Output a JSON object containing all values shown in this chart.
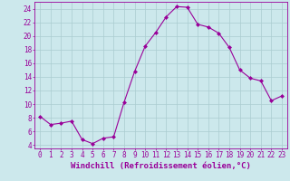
{
  "x": [
    0,
    1,
    2,
    3,
    4,
    5,
    6,
    7,
    8,
    9,
    10,
    11,
    12,
    13,
    14,
    15,
    16,
    17,
    18,
    19,
    20,
    21,
    22,
    23
  ],
  "y": [
    8.2,
    7.0,
    7.2,
    7.5,
    4.8,
    4.2,
    5.0,
    5.2,
    10.3,
    14.8,
    18.5,
    20.5,
    22.8,
    24.3,
    24.2,
    21.7,
    21.3,
    20.4,
    18.3,
    15.0,
    13.8,
    13.4,
    10.5,
    11.2
  ],
  "line_color": "#990099",
  "marker": "D",
  "marker_size": 2.0,
  "bg_color": "#cce8ec",
  "grid_color": "#aaccd0",
  "xlabel": "Windchill (Refroidissement éolien,°C)",
  "xlim": [
    -0.5,
    23.5
  ],
  "ylim": [
    3.5,
    25.0
  ],
  "yticks": [
    4,
    6,
    8,
    10,
    12,
    14,
    16,
    18,
    20,
    22,
    24
  ],
  "xticks": [
    0,
    1,
    2,
    3,
    4,
    5,
    6,
    7,
    8,
    9,
    10,
    11,
    12,
    13,
    14,
    15,
    16,
    17,
    18,
    19,
    20,
    21,
    22,
    23
  ],
  "xtick_labels": [
    "0",
    "1",
    "2",
    "3",
    "4",
    "5",
    "6",
    "7",
    "8",
    "9",
    "10",
    "11",
    "12",
    "13",
    "14",
    "15",
    "16",
    "17",
    "18",
    "19",
    "20",
    "21",
    "22",
    "23"
  ],
  "xlabel_fontsize": 6.5,
  "tick_fontsize": 5.5
}
